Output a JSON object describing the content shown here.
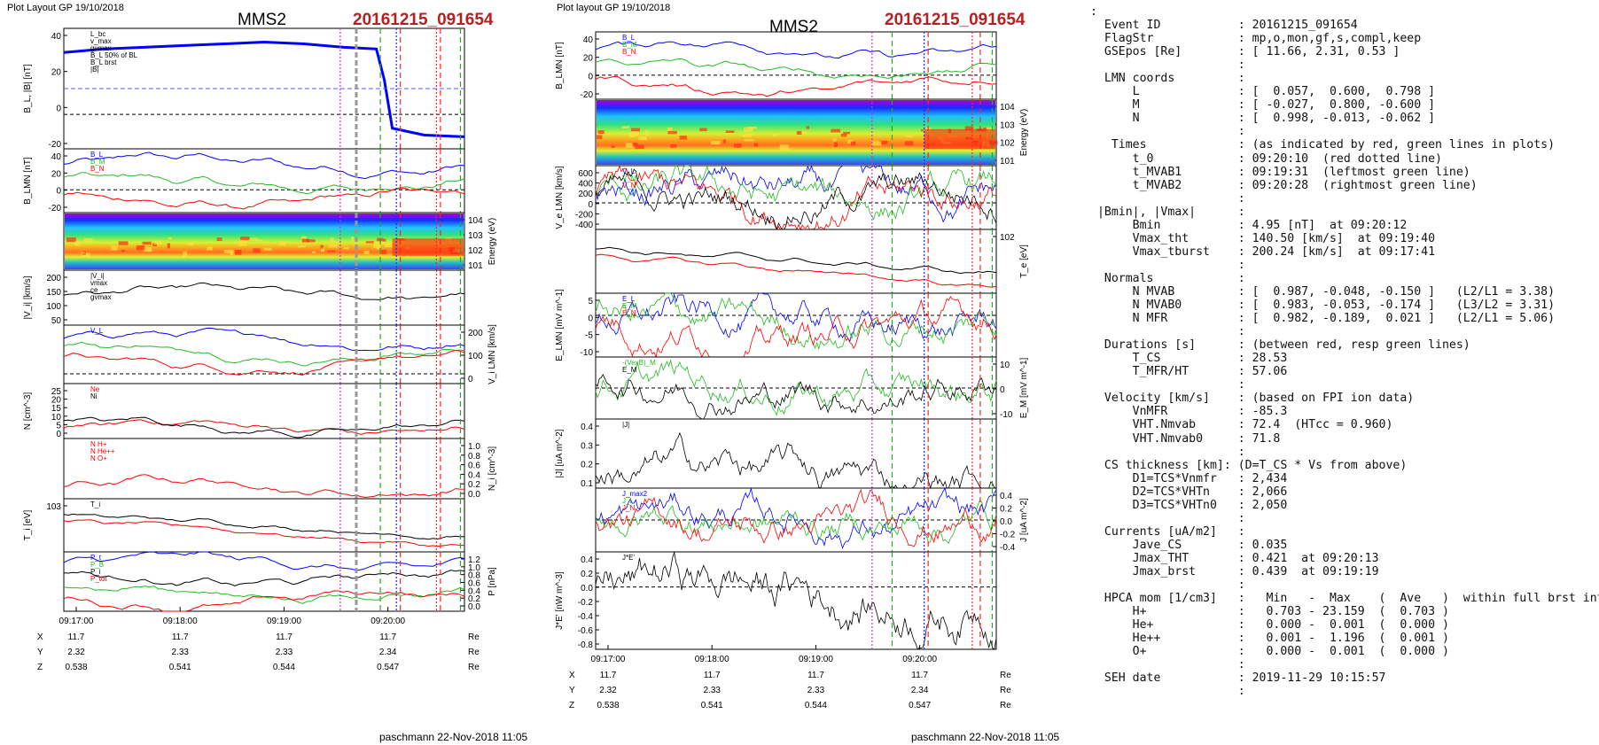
{
  "page": {
    "left_header": "Plot Layout GP 19/10/2018",
    "right_header": "Plot layout GP 19/10/2018",
    "spacecraft": "MMS2",
    "event": "20161215_091654",
    "footer": "paschmann 22-Nov-2018 11:05",
    "time_ticks": [
      "09:17:00",
      "09:18:00",
      "09:19:00",
      "09:20:00"
    ],
    "position_rows": [
      {
        "label": "X",
        "values": [
          "11.7",
          "11.7",
          "11.7",
          "11.7"
        ],
        "unit": "Re"
      },
      {
        "label": "Y",
        "values": [
          "2.32",
          "2.33",
          "2.33",
          "2.34"
        ],
        "unit": "Re"
      },
      {
        "label": "Z",
        "values": [
          "0.538",
          "0.541",
          "0.544",
          "0.547"
        ],
        "unit": "Re"
      }
    ]
  },
  "chart_data": [
    {
      "type": "line",
      "figure": "left",
      "x_range": [
        "09:16:50",
        "09:20:35"
      ],
      "panels": [
        {
          "id": "B",
          "ylabel": "B_L, |B| [nT]",
          "ylim": [
            -20,
            50
          ],
          "yticks": [
            "40",
            "20",
            "0",
            "-20"
          ],
          "legend": [
            "L_bc",
            "v_max",
            "gvmax",
            "B_L 50% of BL",
            "B_L brst",
            "|B|"
          ],
          "series": [
            {
              "name": "B_L brst",
              "color": "#0000ff",
              "points": [
                [
                  0,
                  36
                ],
                [
                  0.1,
                  38
                ],
                [
                  0.2,
                  39
                ],
                [
                  0.3,
                  40
                ],
                [
                  0.4,
                  41
                ],
                [
                  0.5,
                  42
                ],
                [
                  0.6,
                  41
                ],
                [
                  0.7,
                  39
                ],
                [
                  0.78,
                  38
                ],
                [
                  0.8,
                  20
                ],
                [
                  0.82,
                  -8
                ],
                [
                  0.86,
                  -10
                ],
                [
                  0.9,
                  -12
                ],
                [
                  1,
                  -13
                ]
              ]
            }
          ],
          "reference": 15
        },
        {
          "id": "BLMN",
          "ylabel": "B_LMN [nT]",
          "ylim": [
            -25,
            45
          ],
          "yticks": [
            "40",
            "20",
            "0",
            "-20"
          ],
          "legend": [
            "B_L",
            "B_M",
            "B_N"
          ]
        },
        {
          "id": "spec",
          "ylabel": "Energy (eV)",
          "type": "heatmap",
          "yticks": [
            "10^4",
            "10^3",
            "10^2",
            "10^1"
          ]
        },
        {
          "id": "Vi",
          "ylabel": "|V_i| [km/s]",
          "ylim": [
            0,
            200
          ],
          "yticks": [
            "200",
            "150",
            "100",
            "50"
          ],
          "legend": [
            "|V_i|",
            "vmax",
            "ce",
            "gvmax"
          ]
        },
        {
          "id": "ViLMN",
          "ylabel": "V_i LMN [km/s]",
          "ylim": [
            -50,
            250
          ],
          "yticks": [
            "200",
            "100",
            "0"
          ],
          "legend": [
            "V_L"
          ]
        },
        {
          "id": "N",
          "ylabel": "N [cm^-3]",
          "ylim": [
            0,
            25
          ],
          "yticks": [
            "25",
            "20",
            "15",
            "10",
            "5",
            "0"
          ],
          "legend": [
            "Ne",
            "Ni"
          ]
        },
        {
          "id": "Ni",
          "ylabel": "N_i [cm^-3]",
          "ylim": [
            0,
            1.0
          ],
          "yticks": [
            "1.0",
            "0.8",
            "0.6",
            "0.4",
            "0.2",
            "0.0"
          ],
          "legend": [
            "N H+",
            "N He++",
            "N O+"
          ]
        },
        {
          "id": "Ti",
          "ylabel": "T_i [eV]",
          "yticks": [
            "10^3"
          ],
          "legend": [
            "T_i"
          ]
        },
        {
          "id": "P",
          "ylabel": "P [nPa]",
          "ylim": [
            0,
            1.2
          ],
          "yticks": [
            "1.2",
            "1.0",
            "0.8",
            "0.6",
            "0.4",
            "0.2",
            "0.0"
          ],
          "legend": [
            "P_t",
            "P_B",
            "P_i",
            "P_tot"
          ]
        }
      ]
    },
    {
      "type": "line",
      "figure": "right",
      "x_range": [
        "09:16:50",
        "09:20:35"
      ],
      "panels": [
        {
          "id": "BLMN",
          "ylabel": "B_LMN [nT]",
          "ylim": [
            -25,
            45
          ],
          "yticks": [
            "40",
            "20",
            "0",
            "-20"
          ],
          "legend": [
            "B_L",
            "B_M",
            "B_N"
          ]
        },
        {
          "id": "spec",
          "ylabel": "Energy (eV)",
          "type": "heatmap",
          "yticks": [
            "10^4",
            "10^3",
            "10^2",
            "10^1"
          ]
        },
        {
          "id": "Ve",
          "ylabel": "V_e LMN [km/s]",
          "ylim": [
            -500,
            700
          ],
          "yticks": [
            "600",
            "400",
            "200",
            "0",
            "-200",
            "-400"
          ],
          "legend": [
            "V_L",
            "V_M",
            "V_N"
          ]
        },
        {
          "id": "Te",
          "ylabel": "T_e [eV]",
          "yticks": [
            "10^2"
          ]
        },
        {
          "id": "E",
          "ylabel": "E_LMN [mV m^-1]",
          "ylim": [
            -15,
            8
          ],
          "yticks": [
            "5",
            "0",
            "-5",
            "-10"
          ],
          "legend": [
            "E_L",
            "E_M",
            "E_N"
          ]
        },
        {
          "id": "EM",
          "ylabel": "E_M [mV m^-1]",
          "ylim": [
            -15,
            15
          ],
          "yticks": [
            "10",
            "0",
            "-10"
          ],
          "legend": [
            "-(VexB)_M",
            "E_M"
          ]
        },
        {
          "id": "J",
          "ylabel": "|J| [uA m^-2]",
          "ylim": [
            0,
            0.45
          ],
          "yticks": [
            "0.4",
            "0.3",
            "0.2",
            "0.1"
          ],
          "legend": [
            "|J|"
          ]
        },
        {
          "id": "JLMN",
          "ylabel": "J [uA m^-2]",
          "ylim": [
            -0.5,
            0.5
          ],
          "yticks": [
            "0.4",
            "0.2",
            "0.0",
            "-0.2",
            "-0.4"
          ],
          "legend": [
            "J_max2",
            "J_L",
            "J_N"
          ]
        },
        {
          "id": "JE",
          "ylabel": "J*E' [nW m^-3]",
          "ylim": [
            -0.8,
            0.45
          ],
          "yticks": [
            "0.4",
            "0.2",
            "0.0",
            "-0.2",
            "-0.4",
            "-0.6",
            "-0.8"
          ],
          "legend": [
            "J*E'"
          ]
        }
      ]
    }
  ],
  "summary_lines": [
    ":",
    "  Event ID           : 20161215_091654",
    "  FlagStr            : mp,o,mon,gf,s,compl,keep",
    "  GSEpos [Re]        : [ 11.66, 2.31, 0.53 ]",
    "                     :",
    "  LMN coords         :",
    "      L              : [  0.057,  0.600,  0.798 ]",
    "      M              : [ -0.027,  0.800, -0.600 ]",
    "      N              : [  0.998, -0.013, -0.062 ]",
    "                     :",
    "   Times             : (as indicated by red, green lines in plots)",
    "      t_0            : 09:20:10  (red dotted line)",
    "      t_MVAB1        : 09:19:31  (leftmost green line)",
    "      t_MVAB2        : 09:20:28  (rightmost green line)",
    "                     :",
    " |Bmin|, |Vmax|      :",
    "      Bmin           : 4.95 [nT]  at 09:20:12",
    "      Vmax_tht       : 140.50 [km/s]  at 09:19:40",
    "      Vmax_tburst    : 200.24 [km/s]  at 09:17:41",
    "                     :",
    "  Normals            :",
    "      N MVAB         : [  0.987, -0.048, -0.150 ]   (L2/L1 = 3.38)",
    "      N MVAB0        : [  0.983, -0.053, -0.174 ]   (L3/L2 = 3.31)",
    "      N MFR          : [  0.982, -0.189,  0.021 ]   (L2/L1 = 5.06)",
    "                     :",
    "  Durations [s]      : (between red, resp green lines)",
    "      T_CS           : 28.53",
    "      T_MFR/HT       : 57.06",
    "                     :",
    "  Velocity [km/s]    : (based on FPI ion data)",
    "      VnMFR          : -85.3",
    "      VHT.Nmvab      : 72.4  (HTcc = 0.960)",
    "      VHT.Nmvab0     : 71.8",
    "                     :",
    "  CS thickness [km]: (D=T_CS * Vs from above)",
    "      D1=TCS*Vnmfr   : 2,434",
    "      D2=TCS*VHTn    : 2,066",
    "      D3=TCS*VHTn0   : 2,050",
    "                     :",
    "  Currents [uA/m2]   :",
    "      Jave_CS        : 0.035",
    "      Jmax_THT       : 0.421  at 09:20:13",
    "      Jmax_brst      : 0.439  at 09:19:19",
    "                     :",
    "  HPCA mom [1/cm3]   :   Min   -  Max    (  Ave   )  within full brst int",
    "      H+             :   0.703 - 23.159  (  0.703 )",
    "      He+            :   0.000 -  0.001  (  0.000 )",
    "      He++           :   0.001 -  1.196  (  0.001 )",
    "      O+             :   0.000 -  0.001  (  0.000 )",
    "                     :",
    "  SEH date           : 2019-11-29 10:15:57",
    "                     :"
  ]
}
